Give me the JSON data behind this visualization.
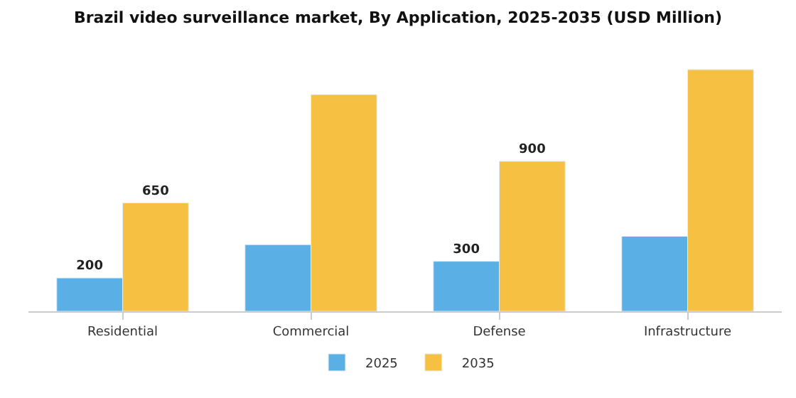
{
  "chart_data": {
    "type": "bar",
    "title": "Brazil video surveillance market, By Application, 2025-2035 (USD Million)",
    "categories": [
      "Residential",
      "Commercial",
      "Defense",
      "Infrastructure"
    ],
    "series": [
      {
        "name": "2025",
        "color": "#5ab0e4",
        "values": [
          200,
          400,
          300,
          450
        ],
        "value_labels": [
          "200",
          null,
          "300",
          null
        ]
      },
      {
        "name": "2035",
        "color": "#f6c143",
        "values": [
          650,
          1300,
          900,
          1450
        ],
        "value_labels": [
          "650",
          null,
          "900",
          null
        ]
      }
    ],
    "legend": "bottom"
  }
}
